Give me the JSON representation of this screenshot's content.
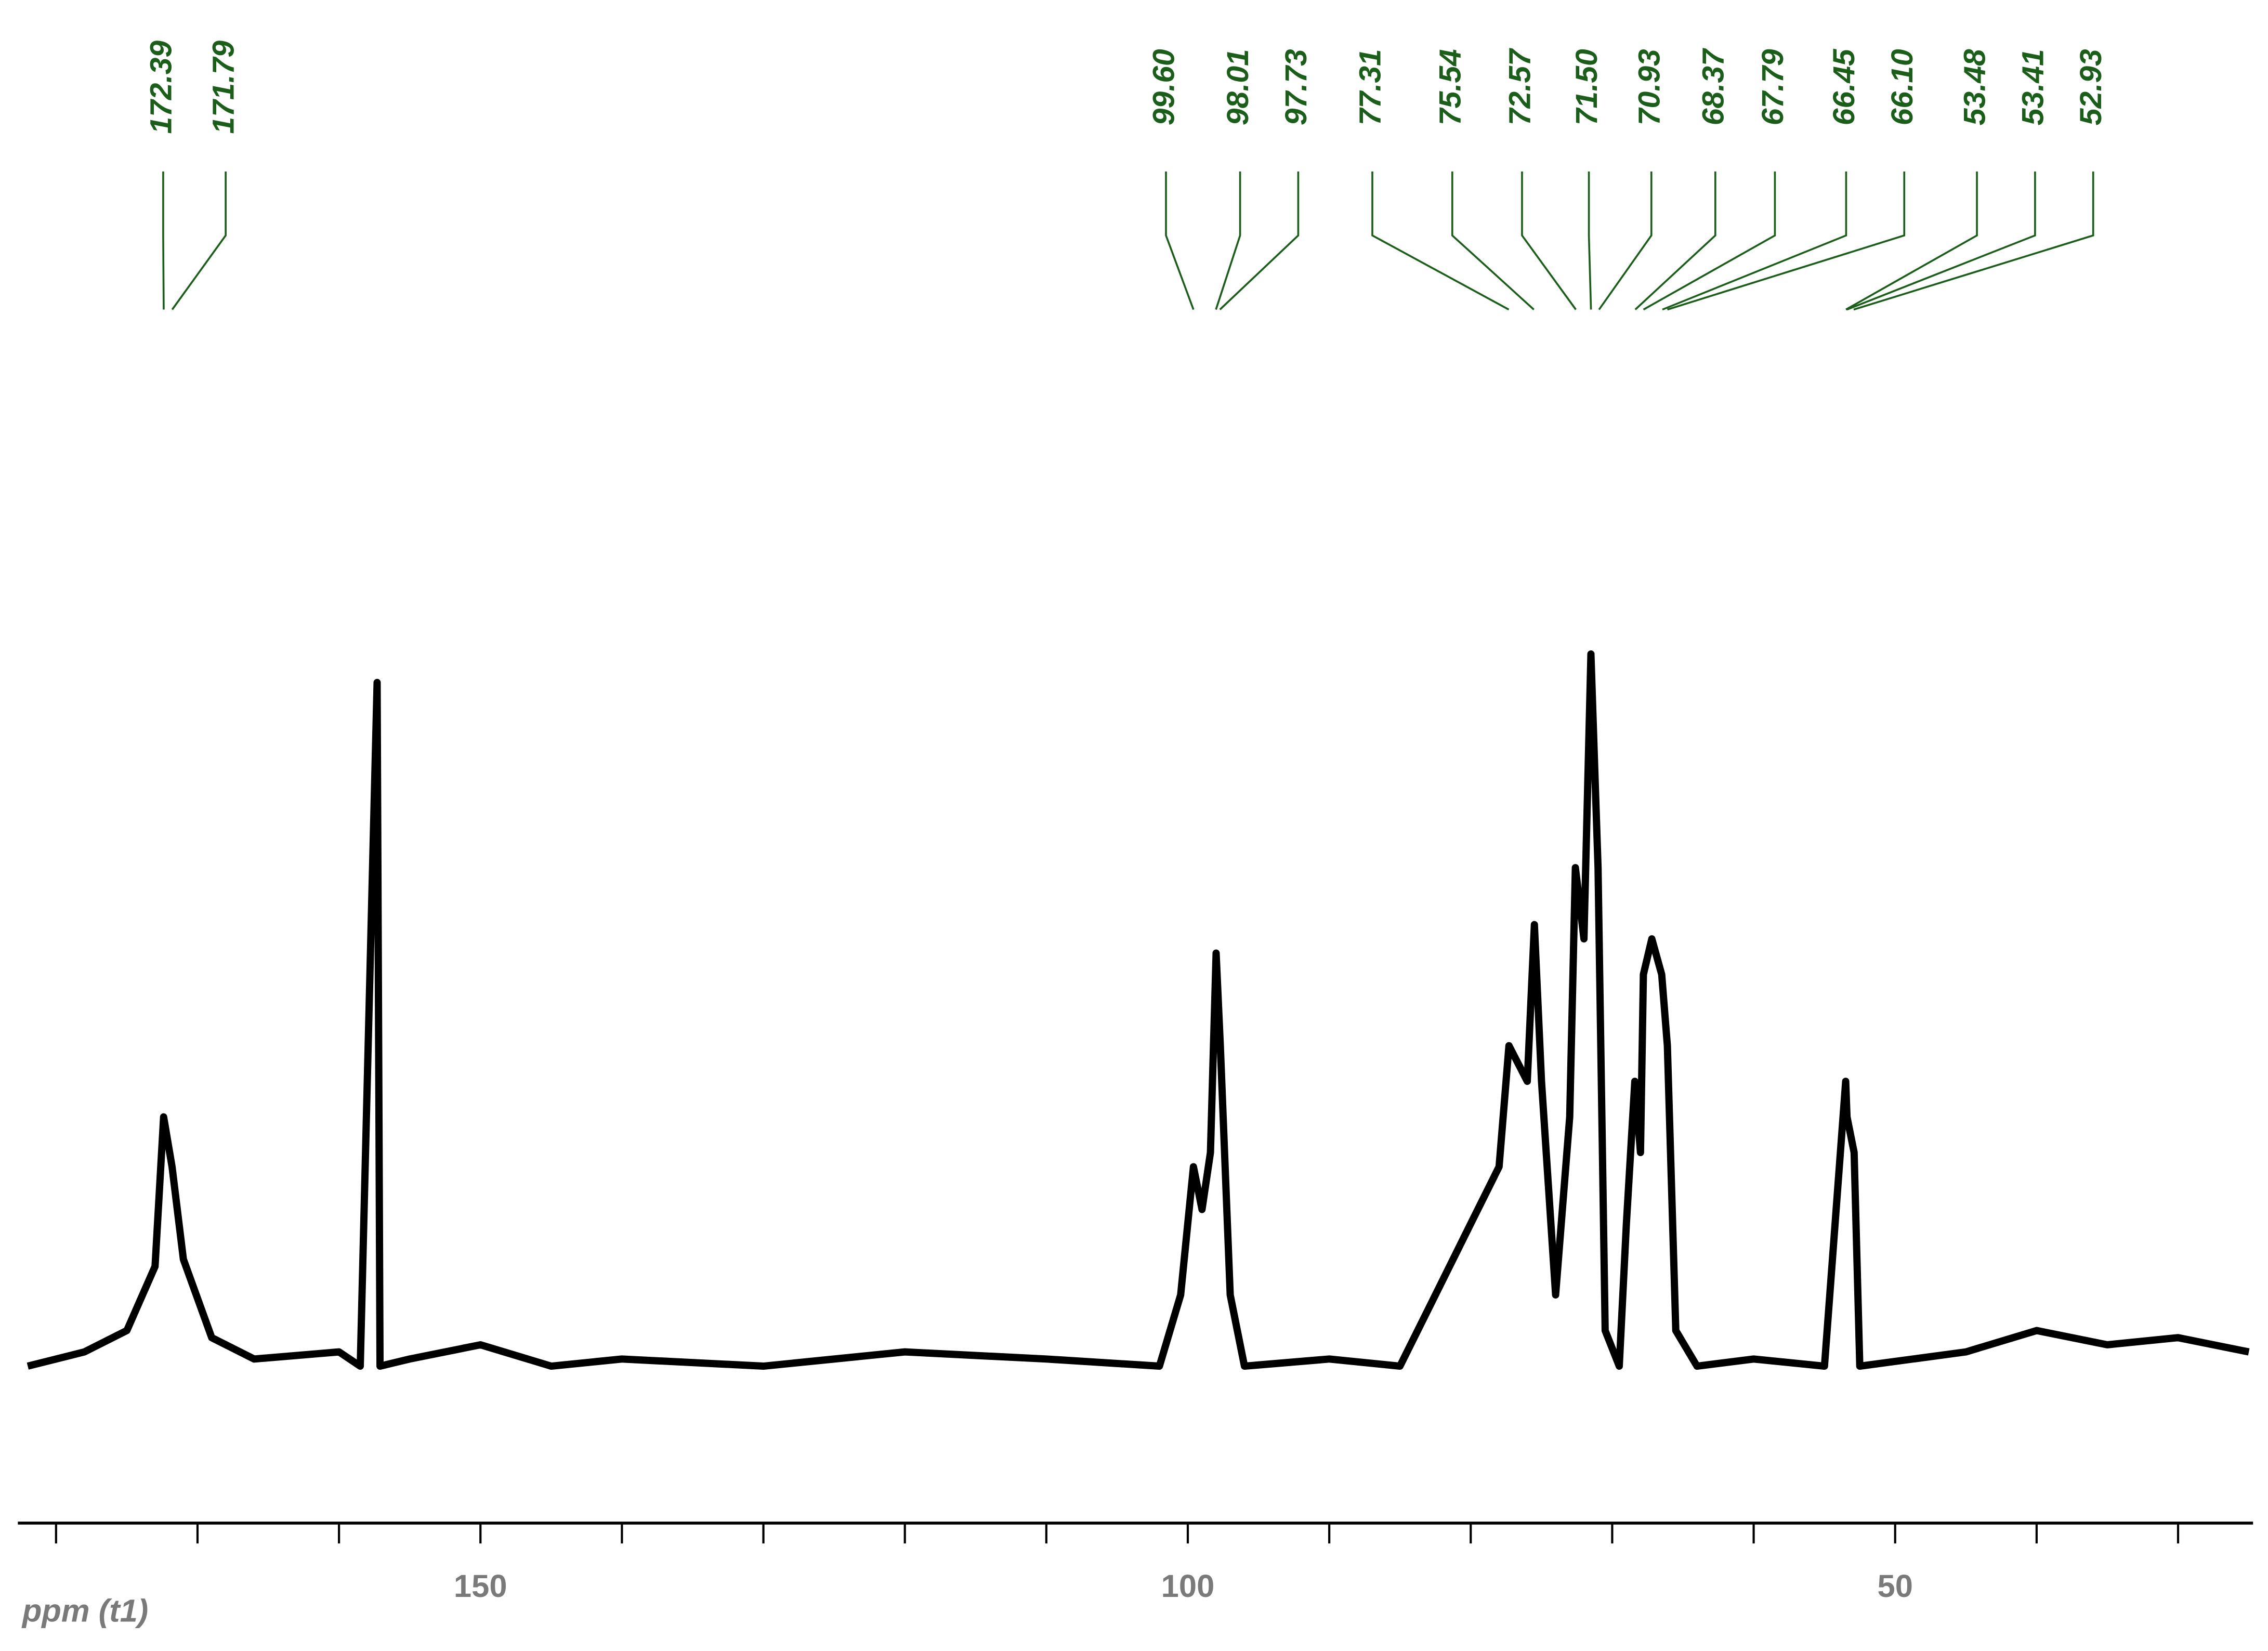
{
  "chart_data": {
    "type": "line",
    "xlabel": "ppm (t1)",
    "xlim": [
      182.7,
      24.7
    ],
    "xticks": [
      150,
      100,
      50
    ],
    "xminor_ticks": [
      180,
      170,
      160,
      150,
      140,
      130,
      120,
      110,
      100,
      90,
      80,
      70,
      60,
      50,
      40,
      30
    ],
    "peaks": [
      172.39,
      171.79,
      {
        "value": 99.6,
        "label": "99.60"
      },
      98.01,
      97.73,
      77.31,
      75.54,
      72.57,
      {
        "value": 71.5,
        "label": "71.50"
      },
      70.93,
      68.37,
      67.79,
      66.45,
      {
        "value": 66.1,
        "label": "66.10"
      },
      53.48,
      53.41,
      52.93
    ],
    "peak_color": "#1a5e1a",
    "series": [
      {
        "color": "#000000",
        "x": [
          182,
          178,
          175,
          173,
          172.4,
          171.8,
          171,
          169,
          166,
          160,
          158.5,
          157.3,
          157.1,
          155,
          150,
          145,
          140,
          130,
          120,
          110,
          102,
          100.5,
          99.6,
          99,
          98.4,
          98.0,
          97.7,
          97,
          96,
          90,
          85,
          83,
          80,
          78,
          77.3,
          76,
          75.5,
          75,
          74,
          73,
          72.6,
          72,
          71.5,
          71,
          70.5,
          69.5,
          69,
          68.4,
          68,
          67.8,
          67.2,
          66.5,
          66.1,
          65.5,
          64,
          60,
          55,
          53.5,
          53.4,
          52.9,
          52.5,
          45,
          40,
          35,
          30,
          25
        ],
        "values": [
          0,
          2,
          5,
          14,
          35,
          28,
          15,
          4,
          1,
          2,
          0,
          96,
          0,
          1,
          3,
          0,
          1,
          0,
          2,
          1,
          0,
          10,
          28,
          22,
          30,
          58,
          45,
          10,
          0,
          1,
          0,
          8,
          20,
          28,
          45,
          40,
          62,
          40,
          10,
          35,
          70,
          60,
          100,
          70,
          5,
          0,
          20,
          40,
          30,
          55,
          60,
          55,
          45,
          5,
          0,
          1,
          0,
          40,
          35,
          30,
          0,
          2,
          5,
          3,
          4,
          2
        ]
      }
    ]
  }
}
